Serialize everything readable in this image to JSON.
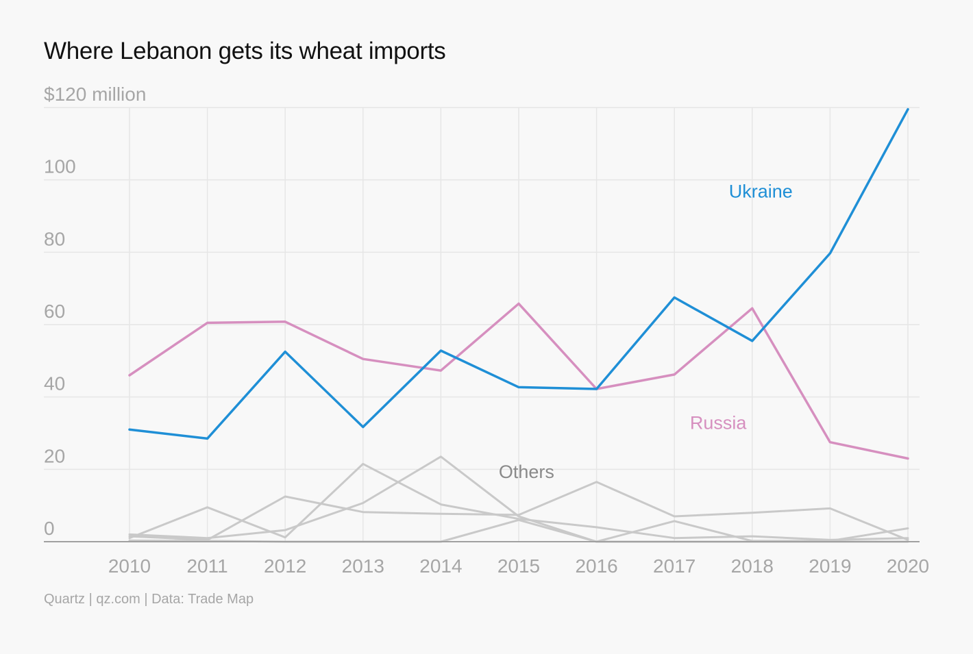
{
  "chart_data": {
    "type": "line",
    "title": "Where Lebanon gets its wheat imports",
    "ylabel": "$120 million",
    "xlabel": "",
    "x": [
      "2010",
      "2011",
      "2012",
      "2013",
      "2014",
      "2015",
      "2016",
      "2017",
      "2018",
      "2019",
      "2020"
    ],
    "ylim": [
      0,
      120
    ],
    "yticks": [
      {
        "value": 0,
        "label": "0"
      },
      {
        "value": 20,
        "label": "20"
      },
      {
        "value": 40,
        "label": "40"
      },
      {
        "value": 60,
        "label": "60"
      },
      {
        "value": 80,
        "label": "80"
      },
      {
        "value": 100,
        "label": "100"
      },
      {
        "value": 120,
        "label": "$120 million"
      }
    ],
    "grid": true,
    "legend": "inline labels",
    "series": [
      {
        "name": "Russia",
        "color": "#d68fbf",
        "label_x": "2017.2",
        "label_y": 33,
        "values": [
          46,
          60.5,
          60.8,
          50.5,
          47.3,
          65.8,
          42.2,
          46.2,
          64.5,
          27.5,
          23
        ]
      },
      {
        "name": "Ukraine",
        "color": "#1f8fd6",
        "label_x": "2017.7",
        "label_y": 97,
        "values": [
          31,
          28.5,
          52.5,
          31.7,
          52.8,
          42.7,
          42.2,
          67.5,
          55.5,
          79.7,
          119.5
        ]
      },
      {
        "name": "",
        "color": "#c9c9c9",
        "values": [
          2,
          1,
          3.2,
          10.7,
          23.5,
          7,
          0,
          5.7,
          0.2,
          0.2,
          3.7
        ]
      },
      {
        "name": "",
        "color": "#c9c9c9",
        "values": [
          1,
          9.5,
          1.2,
          21.5,
          10.3,
          6.3,
          4,
          1,
          1.5,
          0.5,
          1
        ]
      },
      {
        "name": "",
        "color": "#c9c9c9",
        "values": [
          1.5,
          0.5,
          12.5,
          8.2,
          7.7,
          7.4,
          16.5,
          7,
          8,
          9.2,
          0.5
        ]
      },
      {
        "name": "",
        "color": "#c9c9c9",
        "values": [
          0.3,
          0.2,
          0,
          0,
          0,
          6,
          0,
          0,
          0,
          0,
          0
        ]
      }
    ],
    "annotations": [
      {
        "text": "Others",
        "x": "2015.1",
        "y": 19.5,
        "color": "#8a8a8a"
      }
    ]
  },
  "footer": {
    "source": "Quartz | qz.com | Data: Trade Map"
  }
}
